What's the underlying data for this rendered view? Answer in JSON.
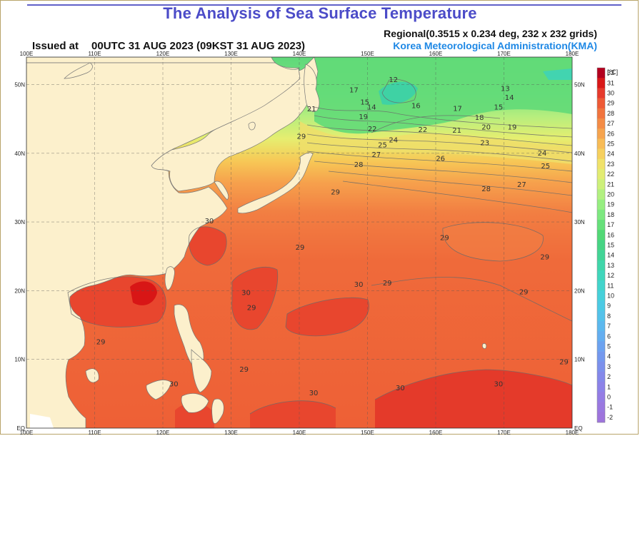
{
  "header": {
    "title": "The Analysis of Sea Surface Temperature",
    "issued_label": "Issued at",
    "issued_time": "00UTC 31 AUG 2023 (09KST 31 AUG 2023)",
    "regional": "Regional(0.3515 x 0.234 deg, 232 x 232 grids)",
    "agency": "Korea Meteorological Administration(KMA)"
  },
  "map": {
    "lon_labels": [
      "100E",
      "110E",
      "120E",
      "130E",
      "140E",
      "150E",
      "160E",
      "170E",
      "180E"
    ],
    "lat_labels": [
      "EQ",
      "10N",
      "20N",
      "30N",
      "40N",
      "50N"
    ],
    "lon_range": [
      100,
      180
    ],
    "lat_range": [
      0,
      54
    ],
    "grid": "dashed",
    "land_color": "#fcf0cc"
  },
  "contour_labels": [
    {
      "text": "12",
      "lon": 153.8,
      "lat": 50.8
    },
    {
      "text": "13",
      "lon": 170.2,
      "lat": 49.5
    },
    {
      "text": "14",
      "lon": 170.8,
      "lat": 48.2
    },
    {
      "text": "15",
      "lon": 169.2,
      "lat": 46.8
    },
    {
      "text": "15",
      "lon": 149.6,
      "lat": 47.5
    },
    {
      "text": "16",
      "lon": 157.1,
      "lat": 47.0
    },
    {
      "text": "17",
      "lon": 148.0,
      "lat": 49.3
    },
    {
      "text": "17",
      "lon": 163.2,
      "lat": 46.6
    },
    {
      "text": "14",
      "lon": 150.6,
      "lat": 46.8
    },
    {
      "text": "18",
      "lon": 166.4,
      "lat": 45.3
    },
    {
      "text": "19",
      "lon": 149.4,
      "lat": 45.4
    },
    {
      "text": "19",
      "lon": 171.2,
      "lat": 43.9
    },
    {
      "text": "20",
      "lon": 167.4,
      "lat": 43.9
    },
    {
      "text": "21",
      "lon": 141.8,
      "lat": 46.5
    },
    {
      "text": "21",
      "lon": 163.1,
      "lat": 43.4
    },
    {
      "text": "22",
      "lon": 158.1,
      "lat": 43.5
    },
    {
      "text": "22",
      "lon": 150.7,
      "lat": 43.6
    },
    {
      "text": "23",
      "lon": 167.2,
      "lat": 41.6
    },
    {
      "text": "24",
      "lon": 153.8,
      "lat": 42.0
    },
    {
      "text": "24",
      "lon": 175.6,
      "lat": 40.1
    },
    {
      "text": "25",
      "lon": 152.2,
      "lat": 41.3
    },
    {
      "text": "25",
      "lon": 176.1,
      "lat": 38.2
    },
    {
      "text": "26",
      "lon": 160.7,
      "lat": 39.3
    },
    {
      "text": "27",
      "lon": 151.3,
      "lat": 39.9
    },
    {
      "text": "27",
      "lon": 172.6,
      "lat": 35.5
    },
    {
      "text": "28",
      "lon": 148.7,
      "lat": 38.4
    },
    {
      "text": "28",
      "lon": 167.4,
      "lat": 34.9
    },
    {
      "text": "29",
      "lon": 140.3,
      "lat": 42.5
    },
    {
      "text": "29",
      "lon": 145.3,
      "lat": 34.4
    },
    {
      "text": "29",
      "lon": 140.1,
      "lat": 26.4
    },
    {
      "text": "29",
      "lon": 161.3,
      "lat": 27.8
    },
    {
      "text": "29",
      "lon": 176.0,
      "lat": 25.0
    },
    {
      "text": "29",
      "lon": 152.9,
      "lat": 21.2
    },
    {
      "text": "29",
      "lon": 172.9,
      "lat": 19.9
    },
    {
      "text": "29",
      "lon": 133.0,
      "lat": 17.6
    },
    {
      "text": "29",
      "lon": 110.9,
      "lat": 12.6
    },
    {
      "text": "29",
      "lon": 131.9,
      "lat": 8.6
    },
    {
      "text": "29",
      "lon": 178.8,
      "lat": 9.7
    },
    {
      "text": "30",
      "lon": 126.8,
      "lat": 30.2
    },
    {
      "text": "30",
      "lon": 148.7,
      "lat": 21.0
    },
    {
      "text": "30",
      "lon": 132.2,
      "lat": 19.8
    },
    {
      "text": "30",
      "lon": 142.1,
      "lat": 5.2
    },
    {
      "text": "30",
      "lon": 154.8,
      "lat": 5.9
    },
    {
      "text": "30",
      "lon": 169.2,
      "lat": 6.5
    },
    {
      "text": "30",
      "lon": 121.6,
      "lat": 6.5
    }
  ],
  "legend": {
    "unit": "[℃]",
    "labels": [
      "32",
      "31",
      "30",
      "29",
      "28",
      "27",
      "26",
      "25",
      "24",
      "23",
      "22",
      "21",
      "20",
      "19",
      "18",
      "17",
      "16",
      "15",
      "14",
      "13",
      "12",
      "11",
      "10",
      "9",
      "8",
      "7",
      "6",
      "5",
      "4",
      "3",
      "2",
      "1",
      "0",
      "-1",
      "-2"
    ],
    "colors": [
      "#b3001e",
      "#d81818",
      "#e63a2c",
      "#ee5a36",
      "#f1743e",
      "#f48c46",
      "#f6a44e",
      "#f8bc56",
      "#f6d05e",
      "#f0e26a",
      "#e2ec72",
      "#cdf07a",
      "#b2f080",
      "#96ee80",
      "#7de880",
      "#66e07a",
      "#52d876",
      "#46d484",
      "#42d496",
      "#40d6aa",
      "#40d6bc",
      "#42d4cc",
      "#46d0da",
      "#4ccae4",
      "#54c2ea",
      "#5cb8ee",
      "#64aef0",
      "#6ca2f0",
      "#7498ee",
      "#7c90ec",
      "#8488ea",
      "#8c82e8",
      "#947ce4",
      "#9a78e0",
      "#9e74dc"
    ]
  }
}
